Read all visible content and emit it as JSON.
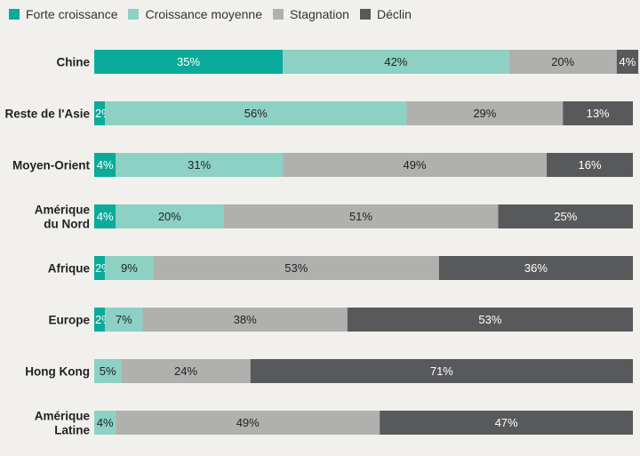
{
  "chart_data": {
    "type": "bar",
    "orientation": "horizontal",
    "stacked": true,
    "normalized": "percent",
    "legend_position": "top-left",
    "grid": false,
    "categories": [
      "Chine",
      "Reste de l'Asie",
      "Moyen-Orient",
      "Amérique du Nord",
      "Afrique",
      "Europe",
      "Hong Kong",
      "Amérique Latine"
    ],
    "category_label_lines": [
      [
        "Chine"
      ],
      [
        "Reste de l'Asie"
      ],
      [
        "Moyen-Orient"
      ],
      [
        "Amérique",
        "du Nord"
      ],
      [
        "Afrique"
      ],
      [
        "Europe"
      ],
      [
        "Hong Kong"
      ],
      [
        "Amérique",
        "Latine"
      ]
    ],
    "series": [
      {
        "name": "Forte croissance",
        "color": "#0aab9a",
        "label_color": "#ffffff",
        "values": [
          35,
          2,
          4,
          4,
          2,
          2,
          0,
          0
        ]
      },
      {
        "name": "Croissance moyenne",
        "color": "#8dd1c5",
        "label_color": "#222222",
        "values": [
          42,
          56,
          31,
          20,
          9,
          7,
          5,
          4
        ]
      },
      {
        "name": "Stagnation",
        "color": "#b0b0ae",
        "label_color": "#222222",
        "values": [
          20,
          29,
          49,
          51,
          53,
          38,
          24,
          49
        ]
      },
      {
        "name": "Déclin",
        "color": "#58595b",
        "label_color": "#ffffff",
        "values": [
          4,
          13,
          16,
          25,
          36,
          53,
          71,
          47
        ]
      }
    ],
    "value_suffix": "%"
  }
}
